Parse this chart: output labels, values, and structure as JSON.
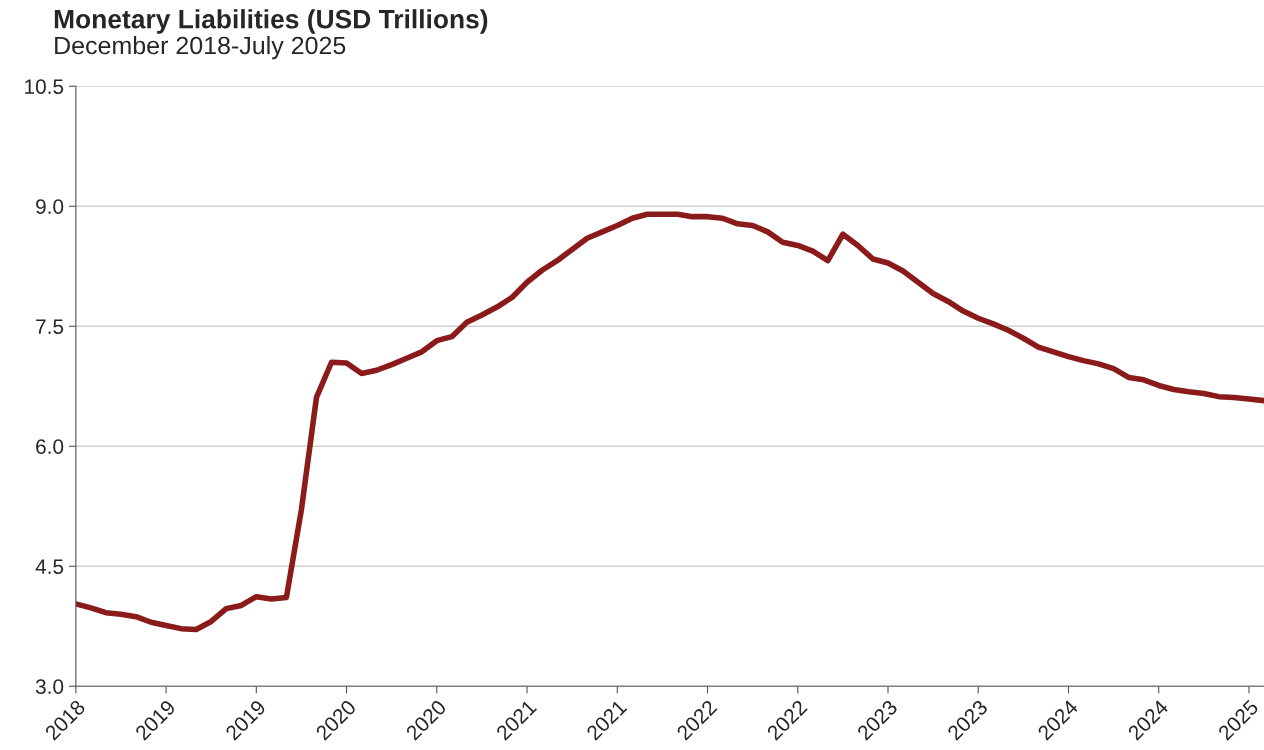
{
  "chart_data": {
    "type": "line",
    "title": "Monetary Liabilities (USD Trillions)",
    "subtitle": "December 2018-July 2025",
    "categories": [
      "2018",
      null,
      null,
      null,
      null,
      null,
      "2019",
      null,
      null,
      null,
      null,
      null,
      "2019",
      null,
      null,
      null,
      null,
      null,
      "2020",
      null,
      null,
      null,
      null,
      null,
      "2020",
      null,
      null,
      null,
      null,
      null,
      "2021",
      null,
      null,
      null,
      null,
      null,
      "2021",
      null,
      null,
      null,
      null,
      null,
      "2022",
      null,
      null,
      null,
      null,
      null,
      "2022",
      null,
      null,
      null,
      null,
      null,
      "2023",
      null,
      null,
      null,
      null,
      null,
      "2023",
      null,
      null,
      null,
      null,
      null,
      "2024",
      null,
      null,
      null,
      null,
      null,
      "2024",
      null,
      null,
      null,
      null,
      null,
      "2025",
      null
    ],
    "series": [
      {
        "color": "#8b1a1a",
        "values": [
          4.03,
          3.98,
          3.92,
          3.9,
          3.87,
          3.8,
          3.76,
          3.72,
          3.71,
          3.81,
          3.97,
          4.01,
          4.12,
          4.09,
          4.11,
          5.21,
          6.61,
          7.05,
          7.04,
          6.91,
          6.95,
          7.02,
          7.1,
          7.18,
          7.32,
          7.37,
          7.55,
          7.64,
          7.74,
          7.86,
          8.05,
          8.2,
          8.32,
          8.46,
          8.6,
          8.68,
          8.76,
          8.85,
          8.9,
          8.9,
          8.9,
          8.87,
          8.87,
          8.85,
          8.78,
          8.76,
          8.68,
          8.55,
          8.51,
          8.44,
          8.32,
          8.65,
          8.51,
          8.34,
          8.29,
          8.19,
          8.05,
          7.91,
          7.81,
          7.69,
          7.6,
          7.53,
          7.45,
          7.35,
          7.24,
          7.18,
          7.12,
          7.07,
          7.03,
          6.97,
          6.86,
          6.83,
          6.76,
          6.71,
          6.68,
          6.66,
          6.62,
          6.61,
          6.59,
          6.57
        ]
      }
    ],
    "ylim": [
      3.0,
      10.5
    ],
    "yticks": [
      {
        "value": 3,
        "label": "3.0"
      },
      {
        "value": 4.5,
        "label": "4.5"
      },
      {
        "value": 6,
        "label": "6.0"
      },
      {
        "value": 7.5,
        "label": "7.5"
      },
      {
        "value": 9,
        "label": "9.0"
      },
      {
        "value": 10.5,
        "label": "10.5"
      }
    ],
    "grid": "y",
    "legend": false,
    "marker": "none",
    "line_style": "solid"
  }
}
